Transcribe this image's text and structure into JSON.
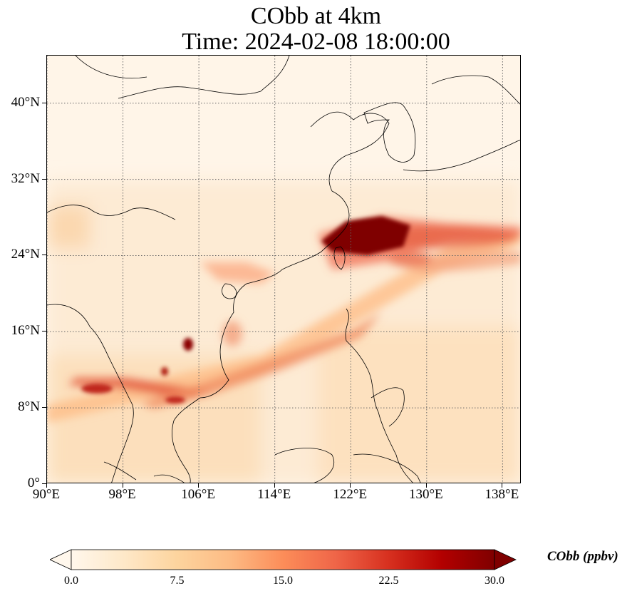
{
  "title": {
    "line1": "CObb at 4km",
    "line2": "Time: 2024-02-08 18:00:00"
  },
  "map": {
    "variable": "CObb",
    "extent": {
      "lon": [
        90,
        140
      ],
      "lat": [
        0,
        45
      ]
    },
    "gridlines": "dotted",
    "y_ticks": [
      {
        "lat": 40,
        "label": "40°N"
      },
      {
        "lat": 32,
        "label": "32°N"
      },
      {
        "lat": 24,
        "label": "24°N"
      },
      {
        "lat": 16,
        "label": "16°N"
      },
      {
        "lat": 8,
        "label": "8°N"
      },
      {
        "lat": 0,
        "label": "0°"
      }
    ],
    "x_ticks": [
      {
        "lon": 90,
        "label": "90°E"
      },
      {
        "lon": 98,
        "label": "98°E"
      },
      {
        "lon": 106,
        "label": "106°E"
      },
      {
        "lon": 114,
        "label": "114°E"
      },
      {
        "lon": 122,
        "label": "122°E"
      },
      {
        "lon": 130,
        "label": "130°E"
      },
      {
        "lon": 138,
        "label": "138°E"
      }
    ]
  },
  "colorbar": {
    "label": "CObb (ppbv)",
    "range": [
      0,
      30
    ],
    "extend": "both",
    "colormap": "OrRd",
    "colors": [
      "#fff7ec",
      "#fee8c8",
      "#fdd49e",
      "#fdbb84",
      "#fc8d59",
      "#ef6548",
      "#d7301f",
      "#b30000",
      "#7f0000"
    ],
    "ticks": [
      {
        "value": 0,
        "label": "0.0"
      },
      {
        "value": 7.5,
        "label": "7.5"
      },
      {
        "value": 15,
        "label": "15.0"
      },
      {
        "value": 22.5,
        "label": "22.5"
      },
      {
        "value": 30,
        "label": "30.0"
      }
    ]
  }
}
